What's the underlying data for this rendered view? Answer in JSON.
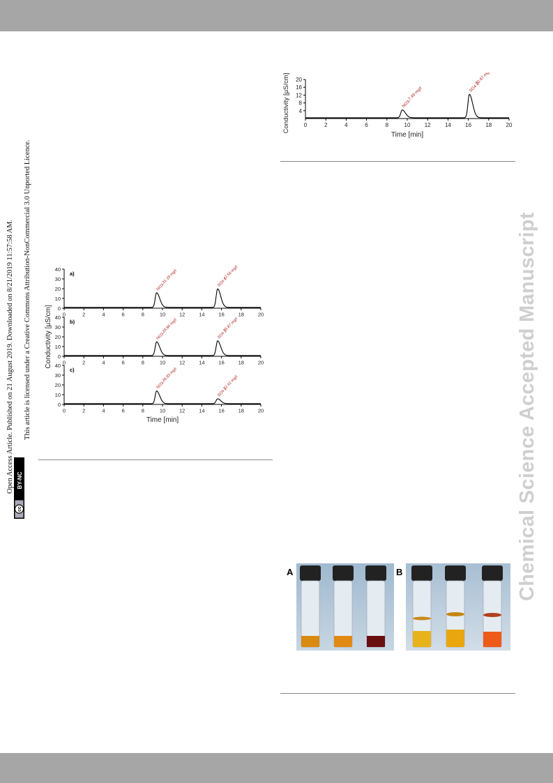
{
  "side_text": {
    "line1": "Open Access Article. Published on 21 August 2019. Downloaded on 8/21/2019 11:57:58 AM.",
    "line2": "This article is licensed under a Creative Commons Attribution-NonCommercial 3.0 Unported Licence.",
    "badge_cc": "cc",
    "badge_bync": "BY-NC"
  },
  "watermark": "Chemical Science Accepted Manuscript",
  "photo_labels": {
    "a": "A",
    "b": "B"
  },
  "chart_data": [
    {
      "type": "line",
      "panels": [
        {
          "label": "a)",
          "peaks": [
            {
              "ion": "NO3-",
              "time": 9.4,
              "height": 15,
              "label": "31.19 mg/l"
            },
            {
              "ion": "SO4 2-",
              "time": 15.6,
              "height": 19,
              "label": "47.56 mg/l"
            }
          ]
        },
        {
          "label": "b)",
          "peaks": [
            {
              "ion": "NO3-",
              "time": 9.4,
              "height": 14,
              "label": "29.86 mg/l"
            },
            {
              "ion": "SO4 2-",
              "time": 15.6,
              "height": 15,
              "label": "35.87 mg/l"
            }
          ]
        },
        {
          "label": "c)",
          "peaks": [
            {
              "ion": "NO3-",
              "time": 9.4,
              "height": 13,
              "label": "28.93 mg/l"
            },
            {
              "ion": "SO4 2-",
              "time": 15.6,
              "height": 5,
              "label": "12.42 mg/l"
            }
          ]
        }
      ],
      "xlabel": "Time [min]",
      "ylabel": "Conductivity [µS/cm]",
      "xlim": [
        0,
        20
      ],
      "ylim": [
        0,
        40
      ],
      "xticks": [
        0,
        2,
        4,
        6,
        8,
        10,
        12,
        14,
        16,
        18,
        20
      ],
      "yticks": [
        0,
        10,
        20,
        30,
        40
      ]
    },
    {
      "type": "line",
      "peaks": [
        {
          "ion": "NO3-",
          "time": 9.5,
          "height": 4,
          "label": "7.49 mg/l"
        },
        {
          "ion": "SO4 2-",
          "time": 16.1,
          "height": 12,
          "label": "30.67 mg/l"
        }
      ],
      "xlabel": "Time [min]",
      "ylabel": "Conductivity [µS/cm]",
      "xlim": [
        0,
        20
      ],
      "ylim": [
        0,
        20
      ],
      "xticks": [
        0,
        2,
        4,
        6,
        8,
        10,
        12,
        14,
        16,
        18,
        20
      ],
      "yticks": [
        4,
        8,
        12,
        16,
        20
      ]
    }
  ]
}
